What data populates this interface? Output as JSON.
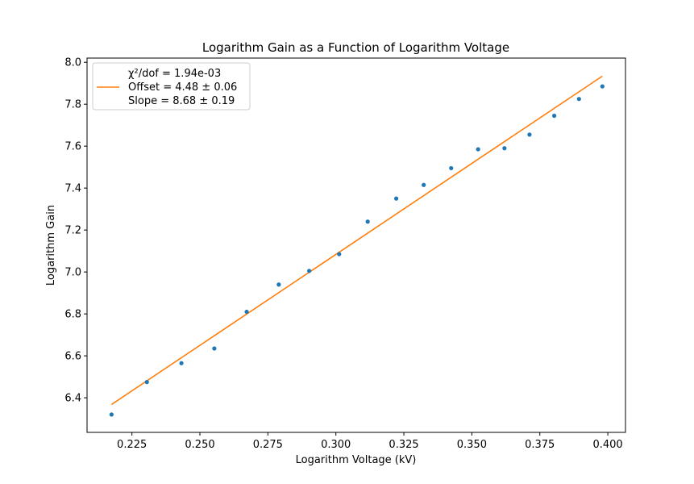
{
  "chart_data": {
    "type": "scatter",
    "title": "Logarithm Gain as a Function of Logarithm Voltage",
    "xlabel": "Logarithm Voltage (kV)",
    "ylabel": "Logarithm Gain",
    "xlim": [
      0.2085,
      0.4065
    ],
    "ylim": [
      6.235,
      8.02
    ],
    "xticks": [
      {
        "value": 0.225,
        "label": "0.225"
      },
      {
        "value": 0.25,
        "label": "0.250"
      },
      {
        "value": 0.275,
        "label": "0.275"
      },
      {
        "value": 0.3,
        "label": "0.300"
      },
      {
        "value": 0.325,
        "label": "0.325"
      },
      {
        "value": 0.35,
        "label": "0.350"
      },
      {
        "value": 0.375,
        "label": "0.375"
      },
      {
        "value": 0.4,
        "label": "0.400"
      }
    ],
    "yticks": [
      {
        "value": 6.4,
        "label": "6.4"
      },
      {
        "value": 6.6,
        "label": "6.6"
      },
      {
        "value": 6.8,
        "label": "6.8"
      },
      {
        "value": 7.0,
        "label": "7.0"
      },
      {
        "value": 7.2,
        "label": "7.2"
      },
      {
        "value": 7.4,
        "label": "7.4"
      },
      {
        "value": 7.6,
        "label": "7.6"
      },
      {
        "value": 7.8,
        "label": "7.8"
      },
      {
        "value": 8.0,
        "label": "8.0"
      }
    ],
    "grid": false,
    "legend_position": "top-left",
    "series": [
      {
        "kind": "scatter",
        "color": "#1f77b4",
        "x": [
          0.2175,
          0.2305,
          0.2432,
          0.2553,
          0.2672,
          0.279,
          0.2902,
          0.3012,
          0.3117,
          0.3222,
          0.3323,
          0.3424,
          0.3523,
          0.362,
          0.3712,
          0.3803,
          0.3894,
          0.398
        ],
        "y": [
          6.32,
          6.475,
          6.565,
          6.635,
          6.81,
          6.94,
          7.005,
          7.085,
          7.24,
          7.35,
          7.415,
          7.495,
          7.585,
          7.59,
          7.655,
          7.745,
          7.825,
          7.885
        ]
      },
      {
        "kind": "line",
        "color": "#ff7f0e",
        "x": [
          0.2175,
          0.398
        ],
        "y": [
          6.368,
          7.934
        ]
      }
    ],
    "legend": {
      "chi2": "χ²/dof = 1.94e-03",
      "offset": "Offset = 4.48 ± 0.06",
      "slope": "Slope = 8.68 ± 0.19"
    }
  }
}
